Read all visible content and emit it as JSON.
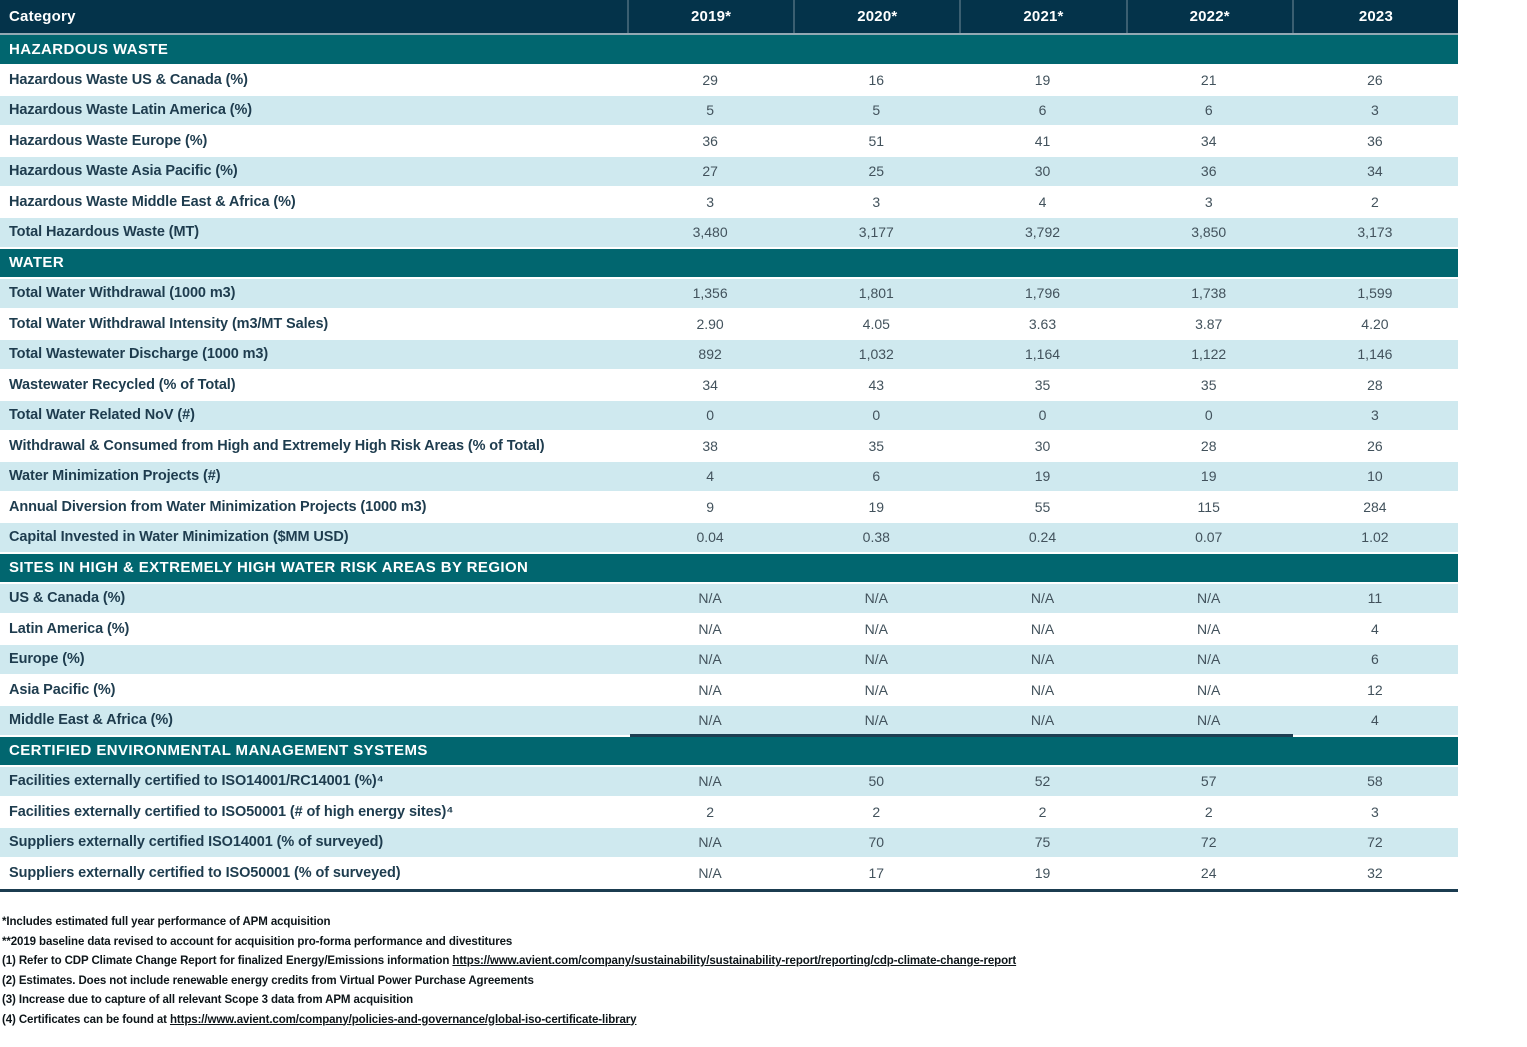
{
  "colors": {
    "header_bg": "#04334a",
    "section_bg": "#01666f",
    "row_alt_bg": "#cfe9ef",
    "row_white_bg": "#ffffff",
    "header_text": "#ffffff",
    "label_text": "#1e3c4e",
    "value_text": "#42525c",
    "header_separator": "#93a9b3",
    "bottom_border": "#1b3c50"
  },
  "table": {
    "columns": [
      "Category",
      "2019*",
      "2020*",
      "2021*",
      "2022*",
      "2023"
    ],
    "sections": [
      {
        "title": "HAZARDOUS WASTE",
        "rows": [
          {
            "label": "Hazardous Waste US & Canada (%)",
            "values": [
              "29",
              "16",
              "19",
              "21",
              "26"
            ]
          },
          {
            "label": "Hazardous Waste Latin America (%)",
            "values": [
              "5",
              "5",
              "6",
              "6",
              "3"
            ]
          },
          {
            "label": "Hazardous Waste Europe (%)",
            "values": [
              "36",
              "51",
              "41",
              "34",
              "36"
            ]
          },
          {
            "label": "Hazardous Waste Asia Pacific (%)",
            "values": [
              "27",
              "25",
              "30",
              "36",
              "34"
            ]
          },
          {
            "label": "Hazardous Waste Middle East & Africa (%)",
            "values": [
              "3",
              "3",
              "4",
              "3",
              "2"
            ]
          },
          {
            "label": "Total Hazardous Waste (MT)",
            "values": [
              "3,480",
              "3,177",
              "3,792",
              "3,850",
              "3,173"
            ]
          }
        ]
      },
      {
        "title": "WATER",
        "rows": [
          {
            "label": "Total Water Withdrawal (1000 m3)",
            "values": [
              "1,356",
              "1,801",
              "1,796",
              "1,738",
              "1,599"
            ]
          },
          {
            "label": "Total Water Withdrawal Intensity (m3/MT Sales)",
            "values": [
              "2.90",
              "4.05",
              "3.63",
              "3.87",
              "4.20"
            ]
          },
          {
            "label": "Total Wastewater Discharge (1000 m3)",
            "values": [
              "892",
              "1,032",
              "1,164",
              "1,122",
              "1,146"
            ]
          },
          {
            "label": "Wastewater Recycled (% of Total)",
            "values": [
              "34",
              "43",
              "35",
              "35",
              "28"
            ]
          },
          {
            "label": "Total Water Related NoV (#)",
            "values": [
              "0",
              "0",
              "0",
              "0",
              "3"
            ]
          },
          {
            "label": "Withdrawal & Consumed from High and Extremely High Risk Areas (% of Total)",
            "values": [
              "38",
              "35",
              "30",
              "28",
              "26"
            ]
          },
          {
            "label": "Water Minimization Projects (#)",
            "values": [
              "4",
              "6",
              "19",
              "19",
              "10"
            ]
          },
          {
            "label": "Annual Diversion from Water Minimization Projects (1000 m3)",
            "values": [
              "9",
              "19",
              "55",
              "115",
              "284"
            ]
          },
          {
            "label": "Capital Invested in Water Minimization ($MM USD)",
            "values": [
              "0.04",
              "0.38",
              "0.24",
              "0.07",
              "1.02"
            ]
          }
        ]
      },
      {
        "title": "SITES IN HIGH & EXTREMELY HIGH WATER RISK AREAS BY REGION",
        "rows": [
          {
            "label": "US & Canada (%)",
            "values": [
              "N/A",
              "N/A",
              "N/A",
              "N/A",
              "11"
            ]
          },
          {
            "label": "Latin America (%)",
            "values": [
              "N/A",
              "N/A",
              "N/A",
              "N/A",
              "4"
            ]
          },
          {
            "label": "Europe (%)",
            "values": [
              "N/A",
              "N/A",
              "N/A",
              "N/A",
              "6"
            ]
          },
          {
            "label": "Asia Pacific (%)",
            "values": [
              "N/A",
              "N/A",
              "N/A",
              "N/A",
              "12"
            ]
          },
          {
            "label": "Middle East & Africa (%)",
            "values": [
              "N/A",
              "N/A",
              "N/A",
              "N/A",
              "4"
            ],
            "underline": true
          }
        ]
      },
      {
        "title": "CERTIFIED ENVIRONMENTAL MANAGEMENT SYSTEMS",
        "rows": [
          {
            "label": "Facilities externally certified to ISO14001/RC14001 (%)⁴",
            "values": [
              "N/A",
              "50",
              "52",
              "57",
              "58"
            ]
          },
          {
            "label": "Facilities externally certified to ISO50001 (# of high energy sites)⁴",
            "values": [
              "2",
              "2",
              "2",
              "2",
              "3"
            ]
          },
          {
            "label": "Suppliers externally certified ISO14001 (% of surveyed)",
            "values": [
              "N/A",
              "70",
              "75",
              "72",
              "72"
            ]
          },
          {
            "label": "Suppliers externally certified to ISO50001 (% of surveyed)",
            "values": [
              "N/A",
              "17",
              "19",
              "24",
              "32"
            ]
          }
        ]
      }
    ]
  },
  "footnotes": [
    {
      "text": "*Includes estimated full year performance of APM acquisition"
    },
    {
      "text": "**2019 baseline data revised to account for acquisition pro-forma performance and divestitures"
    },
    {
      "text": "(1) Refer to CDP Climate Change Report for finalized Energy/Emissions information ",
      "link": "https://www.avient.com/company/sustainability/sustainability-report/reporting/cdp-climate-change-report"
    },
    {
      "text": "(2) Estimates. Does not include renewable energy credits from Virtual Power Purchase Agreements"
    },
    {
      "text": "(3) Increase due to capture of all relevant Scope 3 data from APM acquisition"
    },
    {
      "text": "(4) Certificates can be found at ",
      "link": "https://www.avient.com/company/policies-and-governance/global-iso-certificate-library"
    }
  ]
}
